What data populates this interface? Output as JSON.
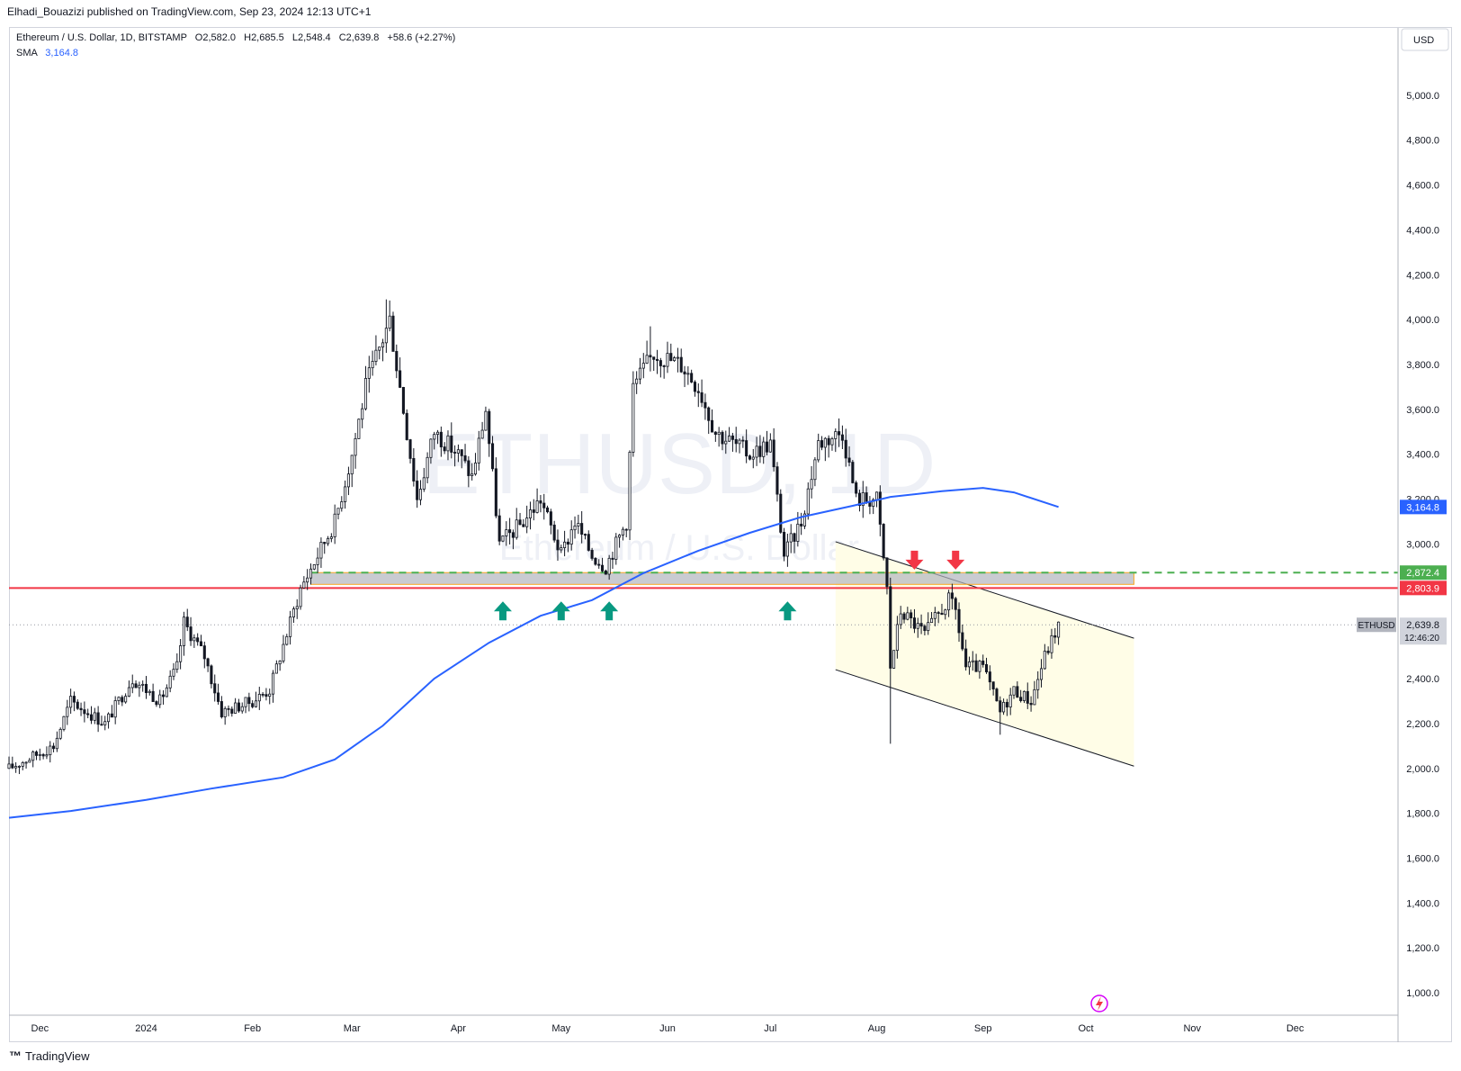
{
  "header": {
    "publish_line": "Elhadi_Bouazizi published on TradingView.com, Sep 23, 2024 12:13 UTC+1"
  },
  "legend": {
    "symbol": "Ethereum / U.S. Dollar, 1D, BITSTAMP",
    "o_label": "O",
    "o_value": "2,582.0",
    "h_label": "H",
    "h_value": "2,685.5",
    "l_label": "L",
    "l_value": "2,548.4",
    "c_label": "C",
    "c_value": "2,639.8",
    "change": "+58.6 (+2.27%)",
    "sma_label": "SMA",
    "sma_value": "3,164.8"
  },
  "watermark": {
    "main": "ETHUSD, 1D",
    "sub": "Ethereum / U.S. Dollar"
  },
  "footer": {
    "brand": "TradingView"
  },
  "colors": {
    "up": "#131722",
    "down": "#131722",
    "sma": "#2962ff",
    "resistance": "#f23645",
    "support_dash": "#4caf50",
    "arrow_up": "#089981",
    "arrow_down": "#f23645",
    "channel_fill": "#fffde7"
  },
  "chart_data": {
    "type": "candlestick",
    "currency": "USD",
    "ylim": [
      900,
      5300
    ],
    "y_ticks": [
      "1,000.0",
      "1,200.0",
      "1,400.0",
      "1,600.0",
      "1,800.0",
      "2,000.0",
      "2,200.0",
      "2,400.0",
      "2,600.0",
      "2,800.0",
      "3,000.0",
      "3,200.0",
      "3,400.0",
      "3,600.0",
      "3,800.0",
      "4,000.0",
      "4,200.0",
      "4,400.0",
      "4,600.0",
      "4,800.0",
      "5,000.0"
    ],
    "x_ticks": [
      {
        "label": "Dec",
        "date": "2023-12-01"
      },
      {
        "label": "2024",
        "date": "2024-01-01"
      },
      {
        "label": "Feb",
        "date": "2024-02-01"
      },
      {
        "label": "Mar",
        "date": "2024-03-01"
      },
      {
        "label": "Apr",
        "date": "2024-04-01"
      },
      {
        "label": "May",
        "date": "2024-05-01"
      },
      {
        "label": "Jun",
        "date": "2024-06-01"
      },
      {
        "label": "Jul",
        "date": "2024-07-01"
      },
      {
        "label": "Aug",
        "date": "2024-08-01"
      },
      {
        "label": "Sep",
        "date": "2024-09-01"
      },
      {
        "label": "Oct",
        "date": "2024-10-01"
      },
      {
        "label": "Nov",
        "date": "2024-11-01"
      },
      {
        "label": "Dec",
        "date": "2024-12-01"
      }
    ],
    "x_range": [
      "2023-11-22",
      "2024-12-31"
    ],
    "price_keypoints": [
      [
        "2023-11-22",
        2000
      ],
      [
        "2023-12-05",
        2100
      ],
      [
        "2023-12-10",
        2300
      ],
      [
        "2023-12-20",
        2200
      ],
      [
        "2023-12-28",
        2400
      ],
      [
        "2024-01-05",
        2300
      ],
      [
        "2024-01-10",
        2450
      ],
      [
        "2024-01-12",
        2650
      ],
      [
        "2024-01-18",
        2500
      ],
      [
        "2024-01-23",
        2250
      ],
      [
        "2024-02-01",
        2300
      ],
      [
        "2024-02-06",
        2350
      ],
      [
        "2024-02-10",
        2550
      ],
      [
        "2024-02-15",
        2800
      ],
      [
        "2024-02-20",
        2950
      ],
      [
        "2024-02-25",
        3100
      ],
      [
        "2024-03-01",
        3400
      ],
      [
        "2024-03-05",
        3700
      ],
      [
        "2024-03-12",
        4000
      ],
      [
        "2024-03-15",
        3700
      ],
      [
        "2024-03-20",
        3200
      ],
      [
        "2024-03-25",
        3500
      ],
      [
        "2024-04-01",
        3400
      ],
      [
        "2024-04-05",
        3300
      ],
      [
        "2024-04-09",
        3600
      ],
      [
        "2024-04-13",
        3000
      ],
      [
        "2024-04-20",
        3100
      ],
      [
        "2024-04-25",
        3200
      ],
      [
        "2024-05-01",
        2950
      ],
      [
        "2024-05-05",
        3100
      ],
      [
        "2024-05-10",
        2950
      ],
      [
        "2024-05-14",
        2900
      ],
      [
        "2024-05-20",
        3100
      ],
      [
        "2024-05-22",
        3700
      ],
      [
        "2024-05-28",
        3850
      ],
      [
        "2024-06-05",
        3800
      ],
      [
        "2024-06-10",
        3700
      ],
      [
        "2024-06-15",
        3500
      ],
      [
        "2024-06-25",
        3400
      ],
      [
        "2024-07-01",
        3450
      ],
      [
        "2024-07-05",
        2950
      ],
      [
        "2024-07-10",
        3100
      ],
      [
        "2024-07-15",
        3450
      ],
      [
        "2024-07-22",
        3500
      ],
      [
        "2024-07-26",
        3200
      ],
      [
        "2024-08-01",
        3200
      ],
      [
        "2024-08-04",
        2800
      ],
      [
        "2024-08-05",
        2450
      ],
      [
        "2024-08-08",
        2700
      ],
      [
        "2024-08-15",
        2600
      ],
      [
        "2024-08-22",
        2750
      ],
      [
        "2024-08-24",
        2700
      ],
      [
        "2024-08-27",
        2450
      ],
      [
        "2024-09-01",
        2450
      ],
      [
        "2024-09-06",
        2250
      ],
      [
        "2024-09-10",
        2350
      ],
      [
        "2024-09-15",
        2300
      ],
      [
        "2024-09-19",
        2500
      ],
      [
        "2024-09-23",
        2640
      ]
    ],
    "candle_end": "2024-09-23",
    "wick_extremes": [
      {
        "date": "2024-03-11",
        "high": 4090
      },
      {
        "date": "2024-05-27",
        "high": 3970
      },
      {
        "date": "2024-08-05",
        "low": 2110
      },
      {
        "date": "2024-09-06",
        "low": 2150
      }
    ],
    "sma": {
      "name": "SMA",
      "points": [
        [
          "2023-11-22",
          1780
        ],
        [
          "2023-12-10",
          1810
        ],
        [
          "2024-01-01",
          1860
        ],
        [
          "2024-01-20",
          1910
        ],
        [
          "2024-02-10",
          1960
        ],
        [
          "2024-02-25",
          2040
        ],
        [
          "2024-03-10",
          2190
        ],
        [
          "2024-03-25",
          2400
        ],
        [
          "2024-04-10",
          2560
        ],
        [
          "2024-04-25",
          2680
        ],
        [
          "2024-05-10",
          2750
        ],
        [
          "2024-05-25",
          2870
        ],
        [
          "2024-06-10",
          2970
        ],
        [
          "2024-06-25",
          3050
        ],
        [
          "2024-07-10",
          3120
        ],
        [
          "2024-07-25",
          3170
        ],
        [
          "2024-08-05",
          3210
        ],
        [
          "2024-08-20",
          3235
        ],
        [
          "2024-09-01",
          3250
        ],
        [
          "2024-09-10",
          3230
        ],
        [
          "2024-09-23",
          3165
        ]
      ]
    },
    "levels": [
      {
        "name": "resistance",
        "value": 2803.9,
        "label": "2,803.9",
        "start": "2023-11-22"
      },
      {
        "name": "support-dashed",
        "value": 2872.4,
        "label": "2,872.4",
        "start": "2024-02-18"
      }
    ],
    "zone": {
      "start": "2024-02-18",
      "end": "2024-10-15",
      "low": 2820,
      "high": 2872.4
    },
    "channel": {
      "start": "2024-07-20",
      "end": "2024-10-15",
      "upper": [
        3010,
        2580
      ],
      "lower": [
        2440,
        2010
      ]
    },
    "arrows_up": [
      {
        "date": "2024-04-14",
        "value": 2700
      },
      {
        "date": "2024-05-01",
        "value": 2700
      },
      {
        "date": "2024-05-15",
        "value": 2700
      },
      {
        "date": "2024-07-06",
        "value": 2700
      }
    ],
    "arrows_down": [
      {
        "date": "2024-08-12",
        "value": 2930
      },
      {
        "date": "2024-08-24",
        "value": 2930
      }
    ],
    "price_labels": [
      {
        "name": "sma-price-label",
        "value": 3164.8,
        "label": "3,164.8",
        "color": "#2962ff"
      },
      {
        "name": "support-price-label",
        "value": 2872.4,
        "label": "2,872.4",
        "color": "#4caf50"
      },
      {
        "name": "resistance-price-label",
        "value": 2803.9,
        "label": "2,803.9",
        "color": "#f23645"
      }
    ],
    "last_price": {
      "value": 2639.8,
      "label": "2,639.8",
      "countdown": "12:46:20",
      "symbol": "ETHUSD"
    }
  }
}
